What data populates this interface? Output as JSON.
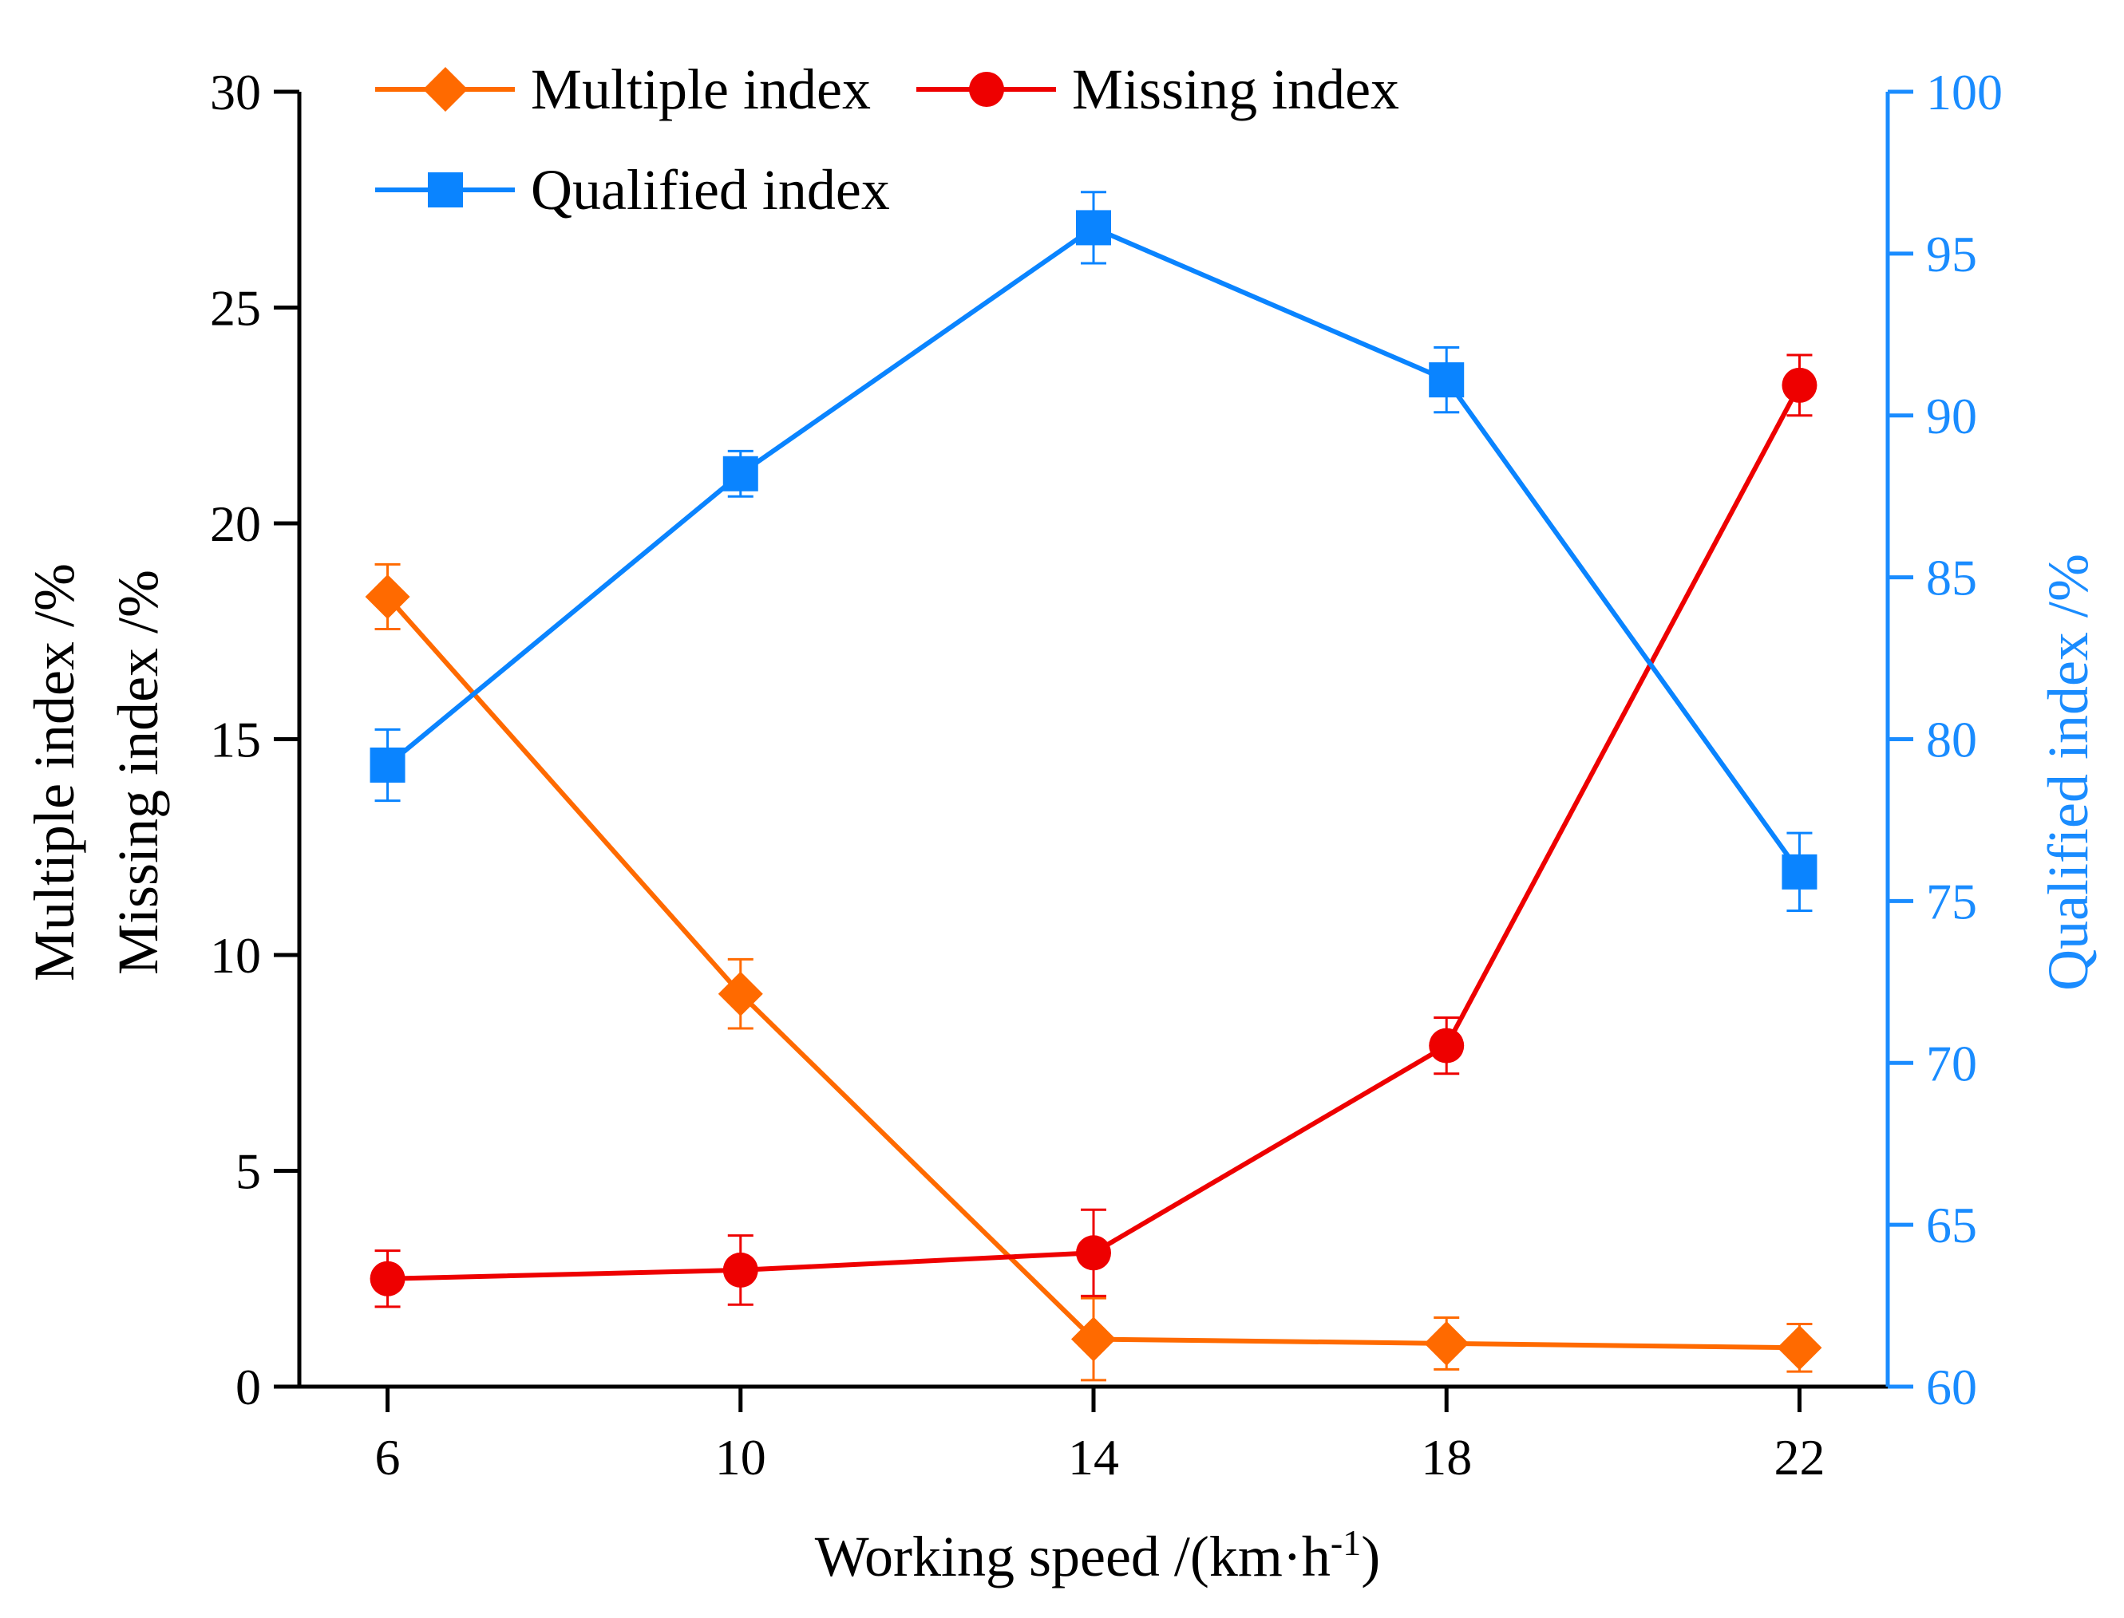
{
  "colors": {
    "multiple": "#ff6a00",
    "missing": "#ee0000",
    "qualified": "#0a84ff",
    "right_axis": "#1a8cff",
    "axis": "#000000"
  },
  "chart_data": {
    "type": "line",
    "x": [
      6,
      10,
      14,
      18,
      22
    ],
    "xlabel_main": "Working speed /(km·h",
    "xlabel_sup": "-1",
    "xlabel_end": ")",
    "ylabel_left_line1": "Multiple index /%",
    "ylabel_left_line2": "Missing index /%",
    "ylabel_right": "Qualified index /%",
    "ylim_left": [
      0,
      30
    ],
    "ylim_right": [
      60,
      100
    ],
    "yticks_left": [
      0,
      5,
      10,
      15,
      20,
      25,
      30
    ],
    "yticks_right": [
      60,
      65,
      70,
      75,
      80,
      85,
      90,
      95,
      100
    ],
    "xticks": [
      6,
      10,
      14,
      18,
      22
    ],
    "xlim": [
      5,
      23
    ],
    "series": [
      {
        "name": "Multiple index",
        "axis": "left",
        "marker": "diamond",
        "values": [
          18.3,
          9.1,
          1.1,
          1.0,
          0.9
        ],
        "errors": [
          0.75,
          0.8,
          0.95,
          0.6,
          0.55
        ]
      },
      {
        "name": "Missing index",
        "axis": "left",
        "marker": "circle",
        "values": [
          2.5,
          2.7,
          3.1,
          7.9,
          23.2
        ],
        "errors": [
          0.65,
          0.8,
          1.0,
          0.65,
          0.7
        ]
      },
      {
        "name": "Qualified index",
        "axis": "right",
        "marker": "square",
        "values": [
          79.2,
          88.2,
          95.8,
          91.1,
          75.9
        ],
        "errors": [
          1.1,
          0.7,
          1.1,
          1.0,
          1.2
        ]
      }
    ],
    "legend": [
      "Multiple index",
      "Missing index",
      "Qualified index"
    ]
  }
}
